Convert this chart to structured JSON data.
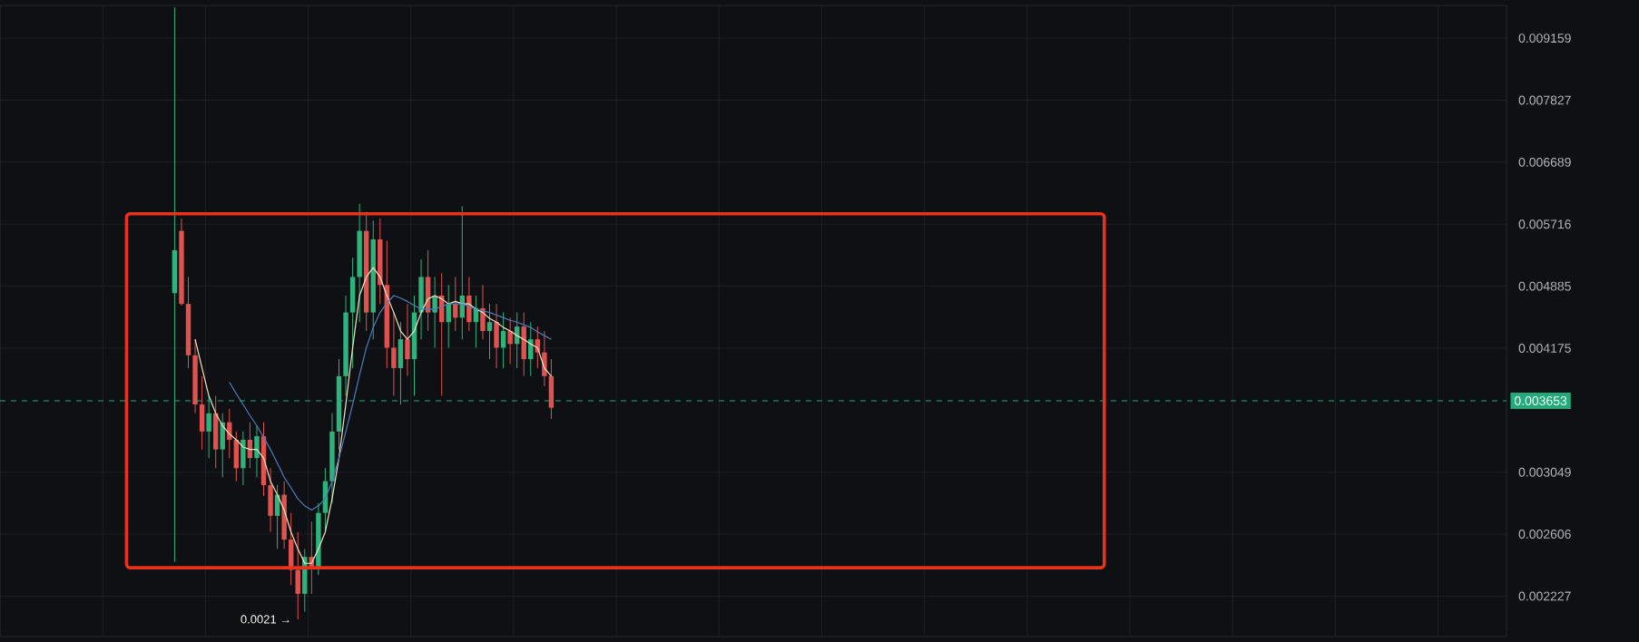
{
  "chart_data": {
    "type": "candlestick",
    "log": "y",
    "grid": true,
    "tick_labels": "y",
    "categories": [
      null,
      null,
      null,
      null,
      null,
      null,
      null,
      null,
      null,
      null,
      null,
      null,
      null,
      null,
      null,
      null,
      null,
      null,
      null,
      null,
      null,
      null,
      null,
      null,
      null,
      null,
      null,
      null,
      null,
      null,
      null,
      null,
      null,
      null,
      null,
      null,
      null,
      null,
      null,
      null,
      null,
      null,
      null,
      null,
      null,
      null,
      null,
      null,
      null,
      null,
      null,
      null,
      null,
      null,
      null,
      null,
      null,
      null,
      null,
      null,
      null,
      null,
      null,
      null,
      null,
      null,
      null,
      null,
      null,
      null,
      null,
      null,
      null,
      null,
      null,
      null,
      null,
      null,
      null,
      null,
      null,
      null,
      null,
      null,
      null,
      null,
      null,
      null,
      null,
      null,
      null,
      null,
      null,
      null,
      null,
      null,
      null,
      null,
      null,
      null,
      null,
      null,
      null,
      null,
      null,
      null,
      null,
      null,
      null,
      null,
      null,
      null,
      null,
      null,
      null,
      null,
      null,
      null,
      null,
      null,
      null,
      null,
      null,
      null,
      null,
      null,
      null,
      null,
      null,
      null,
      null,
      null,
      null,
      null,
      null,
      null,
      null,
      null,
      null,
      null,
      null,
      null,
      null,
      null,
      null,
      null,
      null,
      null,
      null,
      null,
      null,
      null,
      null,
      null,
      null,
      null,
      null,
      null,
      null,
      null,
      null,
      null,
      null,
      null,
      null,
      null,
      null,
      null,
      null,
      null,
      null,
      null,
      null,
      null,
      null,
      null,
      null,
      null,
      null,
      null,
      null,
      null,
      null,
      null,
      null,
      null,
      null,
      null,
      null,
      null,
      null,
      null,
      null,
      null,
      null,
      null,
      null,
      null,
      null,
      null,
      null,
      null,
      null,
      null,
      null,
      null,
      null,
      null,
      null,
      null,
      null,
      null,
      null,
      null,
      null,
      null,
      null,
      null,
      null,
      null
    ],
    "ohlc": [
      null,
      null,
      null,
      null,
      null,
      null,
      null,
      null,
      null,
      null,
      null,
      null,
      null,
      null,
      null,
      null,
      null,
      null,
      null,
      null,
      null,
      null,
      null,
      null,
      null,
      [
        0.0048,
        0.0099,
        0.00243,
        0.00535
      ],
      [
        0.00562,
        0.0058,
        0.00465,
        0.00467
      ],
      [
        0.00467,
        0.005,
        0.00397,
        0.0041
      ],
      [
        0.0041,
        0.00427,
        0.00354,
        0.00362
      ],
      [
        0.00362,
        0.00389,
        0.00323,
        0.00338
      ],
      [
        0.00338,
        0.0037,
        0.00316,
        0.00354
      ],
      [
        0.00354,
        0.0037,
        0.00308,
        0.00323
      ],
      [
        0.00323,
        0.00354,
        0.00301,
        0.00346
      ],
      [
        0.00346,
        0.00358,
        0.00316,
        0.00331
      ],
      [
        0.00331,
        0.00338,
        0.00298,
        0.00308
      ],
      [
        0.00308,
        0.00338,
        0.00295,
        0.00331
      ],
      [
        0.00331,
        0.00346,
        0.00308,
        0.00316
      ],
      [
        0.00316,
        0.00343,
        0.00301,
        0.00334
      ],
      [
        0.00334,
        0.00346,
        0.00287,
        0.00295
      ],
      [
        0.00295,
        0.00308,
        0.00262,
        0.00273
      ],
      [
        0.00273,
        0.00295,
        0.00251,
        0.00288
      ],
      [
        0.00288,
        0.00298,
        0.00251,
        0.00257
      ],
      [
        0.00257,
        0.00275,
        0.00229,
        0.00238
      ],
      [
        0.00238,
        0.00262,
        0.0021,
        0.00224
      ],
      [
        0.00224,
        0.00251,
        0.00214,
        0.00246
      ],
      [
        0.00246,
        0.00269,
        0.00224,
        0.0024
      ],
      [
        0.0024,
        0.00282,
        0.00235,
        0.00275
      ],
      [
        0.00275,
        0.00308,
        0.00262,
        0.00298
      ],
      [
        0.00298,
        0.00354,
        0.00282,
        0.00338
      ],
      [
        0.00338,
        0.00406,
        0.00323,
        0.00389
      ],
      [
        0.00389,
        0.00477,
        0.0037,
        0.00457
      ],
      [
        0.00457,
        0.00525,
        0.00397,
        0.005
      ],
      [
        0.005,
        0.00602,
        0.00446,
        0.00562
      ],
      [
        0.00562,
        0.0059,
        0.00436,
        0.00457
      ],
      [
        0.00457,
        0.00577,
        0.00427,
        0.0055
      ],
      [
        0.0055,
        0.0058,
        0.00467,
        0.0049
      ],
      [
        0.0049,
        0.00548,
        0.00397,
        0.00418
      ],
      [
        0.00418,
        0.00457,
        0.0037,
        0.00397
      ],
      [
        0.00397,
        0.00446,
        0.00362,
        0.00427
      ],
      [
        0.00427,
        0.00467,
        0.00389,
        0.00406
      ],
      [
        0.00406,
        0.00477,
        0.0037,
        0.00457
      ],
      [
        0.00457,
        0.00523,
        0.00427,
        0.005
      ],
      [
        0.005,
        0.00535,
        0.00436,
        0.00457
      ],
      [
        0.00457,
        0.005,
        0.00418,
        0.00477
      ],
      [
        0.00477,
        0.00505,
        0.0037,
        0.00446
      ],
      [
        0.00446,
        0.0049,
        0.00418,
        0.00467
      ],
      [
        0.00467,
        0.005,
        0.00436,
        0.00451
      ],
      [
        0.00451,
        0.00598,
        0.00427,
        0.00477
      ],
      [
        0.00477,
        0.005,
        0.00436,
        0.00446
      ],
      [
        0.00446,
        0.00477,
        0.00418,
        0.00462
      ],
      [
        0.00462,
        0.0049,
        0.00427,
        0.00436
      ],
      [
        0.00436,
        0.00467,
        0.00406,
        0.00446
      ],
      [
        0.00446,
        0.00467,
        0.00397,
        0.00418
      ],
      [
        0.00418,
        0.00457,
        0.00397,
        0.00436
      ],
      [
        0.00436,
        0.00451,
        0.00401,
        0.00422
      ],
      [
        0.00422,
        0.00457,
        0.00397,
        0.00441
      ],
      [
        0.00441,
        0.00457,
        0.00389,
        0.00406
      ],
      [
        0.00406,
        0.00446,
        0.00389,
        0.00427
      ],
      [
        0.00427,
        0.00441,
        0.00397,
        0.00413
      ],
      [
        0.00413,
        0.00436,
        0.00379,
        0.00389
      ],
      [
        0.00389,
        0.00406,
        0.00349,
        0.00359
      ],
      null,
      null,
      null,
      null,
      null,
      null,
      null,
      null,
      null,
      null,
      null,
      null,
      null,
      null,
      null,
      null,
      null,
      null,
      null,
      null,
      null,
      null,
      null,
      null,
      null,
      null,
      null,
      null,
      null,
      null,
      null,
      null,
      null,
      null,
      null,
      null,
      null,
      null,
      null,
      null,
      null,
      null,
      null,
      null,
      null,
      null,
      null,
      null,
      null,
      null,
      null,
      null,
      null,
      null,
      null,
      null,
      null,
      null,
      null,
      null,
      null,
      null,
      null,
      null,
      null,
      null,
      null,
      null,
      null,
      null,
      null,
      null,
      null,
      null,
      null,
      null,
      null,
      null,
      null,
      null,
      null,
      null,
      null,
      null,
      null,
      null,
      null,
      null,
      null,
      null,
      null,
      null,
      null,
      null,
      null,
      null,
      null,
      null,
      null,
      null,
      null,
      null,
      null,
      null,
      null,
      null,
      null,
      null,
      null,
      null,
      null,
      null,
      null,
      null,
      null,
      null,
      null,
      null,
      null,
      null,
      null,
      null,
      null,
      null,
      null,
      null,
      null,
      null,
      null,
      null,
      null,
      null,
      null,
      null,
      null,
      null,
      null,
      null,
      null
    ],
    "colors": [
      null,
      null,
      null,
      null,
      null,
      null,
      null,
      null,
      null,
      null,
      null,
      null,
      null,
      null,
      null,
      null,
      null,
      null,
      null,
      null,
      null,
      null,
      null,
      null,
      null,
      "#2db37b",
      "#e0524f",
      "#e0524f",
      "#e0524f",
      "#e0524f",
      "#2db37b",
      "#e0524f",
      "#2db37b",
      "#e0524f",
      "#e0524f",
      "#2db37b",
      "#e0524f",
      "#2db37b",
      "#e0524f",
      "#e0524f",
      "#2db37b",
      "#e0524f",
      "#e0524f",
      "#e0524f",
      "#2db37b",
      "#e0524f",
      "#2db37b",
      "#2db37b",
      "#2db37b",
      "#2db37b",
      "#2db37b",
      "#2db37b",
      "#2db37b",
      "#e0524f",
      "#2db37b",
      "#e0524f",
      "#e0524f",
      "#e0524f",
      "#2db37b",
      "#e0524f",
      "#2db37b",
      "#2db37b",
      "#e0524f",
      "#2db37b",
      "#e0524f",
      "#2db37b",
      "#e0524f",
      "#2db37b",
      "#e0524f",
      "#2db37b",
      "#e0524f",
      "#2db37b",
      "#e0524f",
      "#2db37b",
      "#e0524f",
      "#2db37b",
      "#e0524f",
      "#2db37b",
      "#e0524f",
      "#e0524f",
      "#e0524f",
      null,
      null,
      null,
      null,
      null,
      null,
      null,
      null,
      null,
      null,
      null,
      null,
      null,
      null,
      null,
      null,
      null,
      null,
      null,
      null,
      null,
      null,
      null,
      null,
      null,
      null,
      null,
      null,
      null,
      null,
      null,
      null,
      null,
      null,
      null,
      null,
      null,
      null,
      null,
      null,
      null,
      null,
      null,
      null,
      null,
      null,
      null,
      null,
      null,
      null,
      null,
      null,
      null,
      null,
      null,
      null,
      null,
      null,
      null,
      null,
      null,
      null,
      null,
      null,
      null,
      null,
      null,
      null,
      null,
      null,
      null,
      null,
      null,
      null,
      null,
      null,
      null,
      null,
      null,
      null,
      null,
      null,
      null,
      null,
      null,
      null,
      null,
      null,
      null,
      null,
      null,
      null,
      null,
      null,
      null,
      null,
      null,
      null,
      null,
      null,
      null,
      null,
      null,
      null,
      null,
      null,
      null,
      null,
      null,
      null,
      null,
      null,
      null,
      null,
      null,
      null,
      null,
      null,
      null,
      null,
      null,
      null,
      null,
      null,
      null,
      null,
      null,
      null,
      null,
      null,
      null,
      null,
      null,
      null,
      null,
      null,
      null,
      null,
      null
    ],
    "series": [
      {
        "type": "line",
        "color": "#f0e6c0",
        "values": [
          null,
          null,
          null,
          null,
          null,
          null,
          null,
          null,
          null,
          null,
          null,
          null,
          null,
          null,
          null,
          null,
          null,
          null,
          null,
          null,
          null,
          null,
          null,
          null,
          null,
          null,
          null,
          null,
          0.00427,
          0.00397,
          0.0037,
          0.00354,
          0.00343,
          0.00336,
          0.00331,
          0.00325,
          0.00323,
          0.00323,
          0.00316,
          0.00298,
          0.00288,
          0.00277,
          0.00262,
          0.00251,
          0.00242,
          0.00242,
          0.00251,
          0.00262,
          0.00285,
          0.00316,
          0.00362,
          0.00418,
          0.00477,
          0.005,
          0.00512,
          0.005,
          0.00477,
          0.00457,
          0.00436,
          0.00427,
          0.00436,
          0.00457,
          0.00473,
          0.00477,
          0.00473,
          0.00467,
          0.0047,
          0.00467,
          0.00467,
          0.00461,
          0.00457,
          0.0045,
          0.00446,
          0.0044,
          0.00436,
          0.00431,
          0.00427,
          0.00422,
          0.00418,
          0.00397,
          0.00389,
          null,
          null,
          null,
          null,
          null,
          null,
          null,
          null,
          null,
          null,
          null,
          null,
          null,
          null,
          null,
          null,
          null,
          null,
          null,
          null,
          null,
          null,
          null,
          null,
          null,
          null,
          null,
          null,
          null,
          null,
          null,
          null,
          null,
          null,
          null,
          null,
          null,
          null,
          null,
          null,
          null,
          null,
          null,
          null,
          null,
          null,
          null,
          null,
          null,
          null,
          null,
          null,
          null,
          null,
          null,
          null,
          null,
          null,
          null,
          null,
          null,
          null,
          null,
          null,
          null,
          null,
          null,
          null,
          null,
          null,
          null,
          null,
          null,
          null,
          null,
          null,
          null,
          null,
          null,
          null,
          null,
          null,
          null,
          null,
          null,
          null,
          null,
          null,
          null,
          null,
          null,
          null,
          null,
          null,
          null,
          null,
          null,
          null,
          null,
          null,
          null,
          null,
          null,
          null,
          null,
          null,
          null,
          null,
          null,
          null,
          null,
          null,
          null,
          null,
          null,
          null,
          null,
          null,
          null,
          null,
          null,
          null,
          null,
          null,
          null,
          null,
          null,
          null,
          null,
          null,
          null,
          null,
          null,
          null,
          null,
          null,
          null,
          null,
          null
        ]
      },
      {
        "type": "line",
        "color": "#4a7fc1",
        "values": [
          null,
          null,
          null,
          null,
          null,
          null,
          null,
          null,
          null,
          null,
          null,
          null,
          null,
          null,
          null,
          null,
          null,
          null,
          null,
          null,
          null,
          null,
          null,
          null,
          null,
          null,
          null,
          null,
          null,
          null,
          null,
          null,
          null,
          0.00383,
          0.00372,
          0.00362,
          0.00352,
          0.00343,
          0.00333,
          0.00323,
          0.00312,
          0.00301,
          0.00293,
          0.00285,
          0.0028,
          0.00277,
          0.0028,
          0.00285,
          0.00298,
          0.00316,
          0.00338,
          0.00362,
          0.0039,
          0.00418,
          0.0044,
          0.00457,
          0.00468,
          0.00477,
          0.00474,
          0.0047,
          0.00465,
          0.00461,
          0.00461,
          0.00461,
          0.00464,
          0.00467,
          0.00467,
          0.00467,
          0.00464,
          0.00461,
          0.00459,
          0.00457,
          0.00454,
          0.00451,
          0.00448,
          0.00446,
          0.00443,
          0.0044,
          0.00435,
          0.00431,
          0.00427,
          null,
          null,
          null,
          null,
          null,
          null,
          null,
          null,
          null,
          null,
          null,
          null,
          null,
          null,
          null,
          null,
          null,
          null,
          null,
          null,
          null,
          null,
          null,
          null,
          null,
          null,
          null,
          null,
          null,
          null,
          null,
          null,
          null,
          null,
          null,
          null,
          null,
          null,
          null,
          null,
          null,
          null,
          null,
          null,
          null,
          null,
          null,
          null,
          null,
          null,
          null,
          null,
          null,
          null,
          null,
          null,
          null,
          null,
          null,
          null,
          null,
          null,
          null,
          null,
          null,
          null,
          null,
          null,
          null,
          null,
          null,
          null,
          null,
          null,
          null,
          null,
          null,
          null,
          null,
          null,
          null,
          null,
          null,
          null,
          null,
          null,
          null,
          null,
          null,
          null,
          null,
          null,
          null,
          null,
          null,
          null,
          null,
          null,
          null,
          null,
          null,
          null,
          null,
          null,
          null,
          null,
          null,
          null,
          null,
          null,
          null,
          null,
          null,
          null,
          null,
          null,
          null,
          null,
          null,
          null,
          null,
          null,
          null,
          null,
          null,
          null,
          null,
          null,
          null,
          null,
          null,
          null,
          null,
          null,
          null,
          null,
          null,
          null,
          null
        ]
      }
    ],
    "ylim": [
      0.00201,
      0.00995
    ],
    "yticks": [
      0.002227,
      0.002606,
      0.003049,
      0.004175,
      0.004885,
      0.005716,
      0.006689,
      0.007827,
      0.009159
    ],
    "ref_lines": [
      {
        "axis": "y",
        "value": 0.003653,
        "label": "0.003653",
        "color": "#22ab7a",
        "line_style": "dashed"
      }
    ],
    "annotations": [
      "0.0021 →"
    ]
  }
}
